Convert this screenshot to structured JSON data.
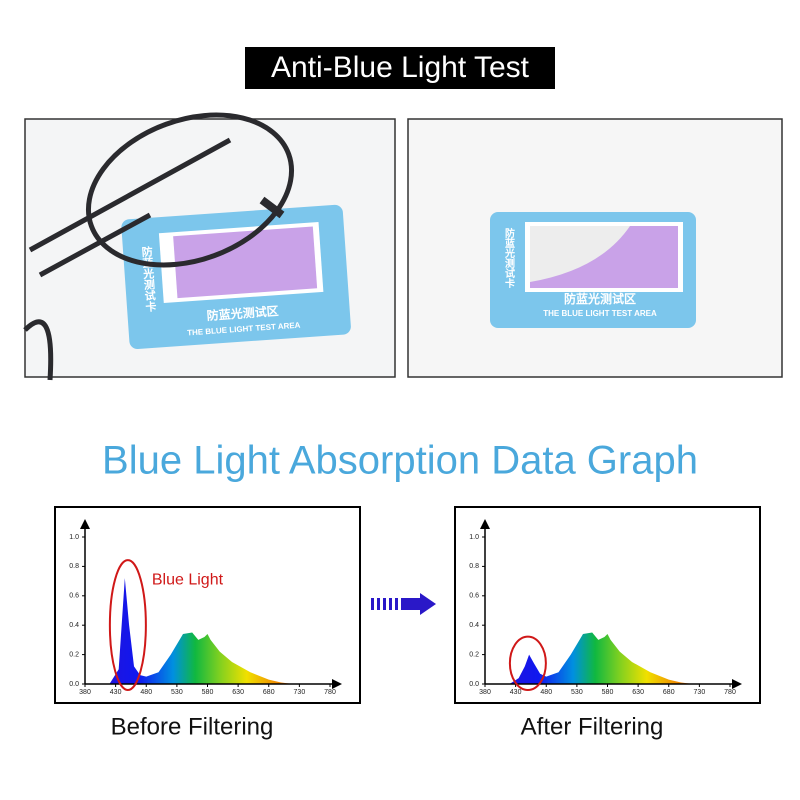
{
  "header": {
    "title": "Anti-Blue Light Test"
  },
  "photos": [
    {
      "card_vertical": "防蓝光测试卡",
      "card_area": "防蓝光测试区",
      "card_area_en": "THE BLUE LIGHT TEST AREA"
    },
    {
      "card_vertical": "防蓝光测试卡",
      "card_area": "防蓝光测试区",
      "card_area_en": "THE BLUE LIGHT TEST AREA"
    }
  ],
  "section_title": "Blue Light Absorption Data Graph",
  "chart_data": [
    {
      "type": "area",
      "caption": "Before Filtering",
      "annotation": "Blue Light",
      "x": [
        380,
        420,
        435,
        445,
        452,
        460,
        470,
        480,
        500,
        520,
        540,
        555,
        565,
        575,
        580,
        585,
        600,
        620,
        650,
        680,
        700,
        720,
        780
      ],
      "values": [
        0,
        0,
        0.1,
        0.72,
        0.4,
        0.12,
        0.06,
        0.05,
        0.08,
        0.2,
        0.34,
        0.35,
        0.3,
        0.32,
        0.34,
        0.3,
        0.22,
        0.15,
        0.08,
        0.03,
        0.01,
        0,
        0
      ],
      "xlim": [
        380,
        780
      ],
      "ylim": [
        0,
        1
      ],
      "xticks": [
        380,
        430,
        480,
        530,
        580,
        630,
        680,
        730,
        780
      ],
      "yticks": [
        {
          "value": 0,
          "label": "0.0"
        },
        0.2,
        0.4,
        0.6,
        0.8,
        {
          "value": 1,
          "label": "1.0"
        }
      ]
    },
    {
      "type": "area",
      "caption": "After Filtering",
      "x": [
        380,
        420,
        435,
        445,
        452,
        460,
        470,
        480,
        500,
        520,
        540,
        555,
        565,
        575,
        580,
        585,
        600,
        620,
        650,
        680,
        700,
        720,
        780
      ],
      "values": [
        0,
        0,
        0.04,
        0.12,
        0.2,
        0.14,
        0.07,
        0.05,
        0.08,
        0.2,
        0.34,
        0.35,
        0.3,
        0.32,
        0.34,
        0.3,
        0.22,
        0.15,
        0.08,
        0.03,
        0.01,
        0,
        0
      ],
      "xlim": [
        380,
        780
      ],
      "ylim": [
        0,
        1
      ],
      "xticks": [
        380,
        430,
        480,
        530,
        580,
        630,
        680,
        730,
        780
      ],
      "yticks": [
        {
          "value": 0,
          "label": "0.0"
        },
        0.2,
        0.4,
        0.6,
        0.8,
        {
          "value": 1,
          "label": "1.0"
        }
      ]
    }
  ]
}
